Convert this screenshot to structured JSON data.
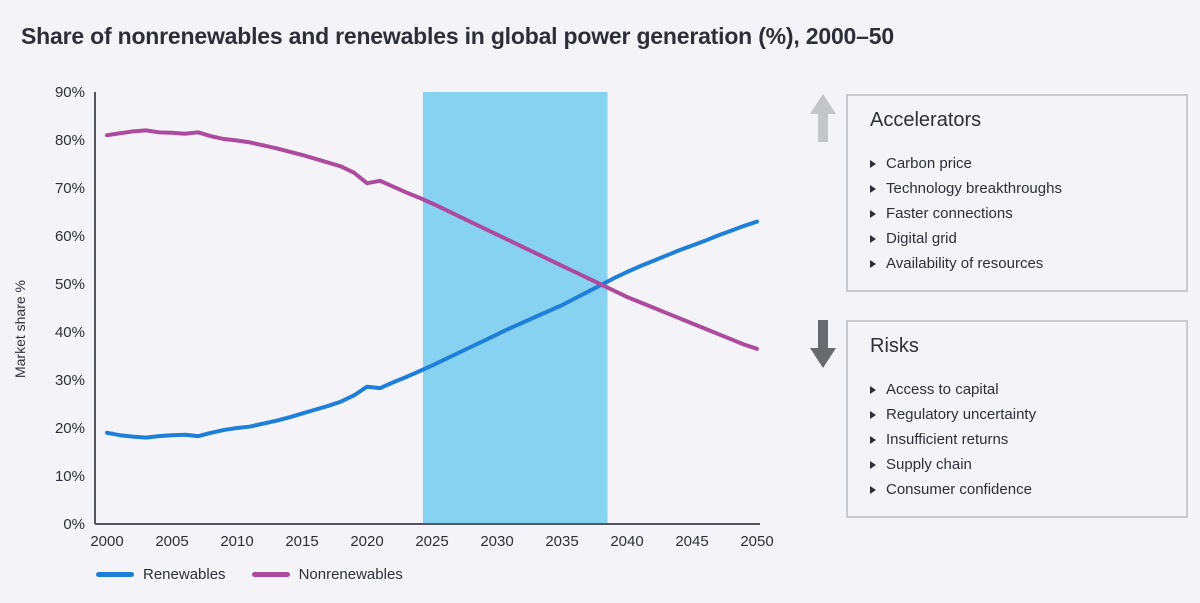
{
  "page": {
    "title": "Share of nonrenewables and renewables in global power generation (%), 2000–50",
    "background": "#f4f4f8"
  },
  "chart_data": {
    "type": "line",
    "title": "Share of nonrenewables and renewables in global power generation (%), 2000–50",
    "xlabel": "",
    "ylabel": "Market share %",
    "xlim": [
      2000,
      2050
    ],
    "ylim": [
      0,
      90
    ],
    "x_ticks": [
      2000,
      2005,
      2010,
      2015,
      2020,
      2025,
      2030,
      2035,
      2040,
      2045,
      2050
    ],
    "y_ticks": [
      0,
      10,
      20,
      30,
      40,
      50,
      60,
      70,
      80,
      90
    ],
    "y_tick_suffix": "%",
    "grid": false,
    "axis_color": "#54545c",
    "legend_position": "bottom-left",
    "highlight_band": {
      "from": 2024.3,
      "to": 2038.5,
      "color": "#87d2f1"
    },
    "x": [
      2000,
      2001,
      2002,
      2003,
      2004,
      2005,
      2006,
      2007,
      2008,
      2009,
      2010,
      2011,
      2012,
      2013,
      2014,
      2015,
      2016,
      2017,
      2018,
      2019,
      2020,
      2021,
      2022,
      2023,
      2024,
      2025,
      2026,
      2027,
      2028,
      2029,
      2030,
      2031,
      2032,
      2033,
      2034,
      2035,
      2036,
      2037,
      2038,
      2039,
      2040,
      2041,
      2042,
      2043,
      2044,
      2045,
      2046,
      2047,
      2048,
      2049,
      2050
    ],
    "series": [
      {
        "name": "Renewables",
        "color": "#1e7fd9",
        "values": [
          19.0,
          18.5,
          18.2,
          18.0,
          18.3,
          18.5,
          18.6,
          18.3,
          19.0,
          19.6,
          20.0,
          20.3,
          20.9,
          21.5,
          22.2,
          23.0,
          23.8,
          24.6,
          25.5,
          26.8,
          28.6,
          28.3,
          29.5,
          30.6,
          31.8,
          33.0,
          34.3,
          35.6,
          36.9,
          38.2,
          39.5,
          40.8,
          42.0,
          43.2,
          44.4,
          45.6,
          47.0,
          48.4,
          49.8,
          51.2,
          52.5,
          53.7,
          54.8,
          55.9,
          57.0,
          58.0,
          59.0,
          60.1,
          61.1,
          62.1,
          63.0
        ]
      },
      {
        "name": "Nonrenewables",
        "color": "#ae4a9e",
        "values": [
          81.0,
          81.4,
          81.8,
          82.0,
          81.6,
          81.5,
          81.3,
          81.6,
          80.8,
          80.2,
          79.9,
          79.5,
          78.9,
          78.3,
          77.6,
          76.9,
          76.1,
          75.3,
          74.5,
          73.2,
          71.0,
          71.5,
          70.3,
          69.1,
          68.0,
          66.8,
          65.5,
          64.2,
          62.9,
          61.6,
          60.3,
          59.0,
          57.7,
          56.4,
          55.1,
          53.8,
          52.5,
          51.2,
          49.9,
          48.6,
          47.3,
          46.2,
          45.1,
          44.0,
          42.9,
          41.8,
          40.7,
          39.6,
          38.5,
          37.4,
          36.5
        ]
      }
    ]
  },
  "legend": {
    "items": [
      {
        "label": "Renewables",
        "color": "#1e7fd9"
      },
      {
        "label": "Nonrenewables",
        "color": "#ae4a9e"
      }
    ]
  },
  "panels": {
    "accelerators": {
      "title": "Accelerators",
      "arrow": "up-arrow-icon",
      "arrow_color": "#c4c5c9",
      "items": [
        "Carbon price",
        "Technology breakthroughs",
        "Faster connections",
        "Digital grid",
        "Availability of resources"
      ]
    },
    "risks": {
      "title": "Risks",
      "arrow": "down-arrow-icon",
      "arrow_color": "#696a70",
      "items": [
        "Access to capital",
        "Regulatory uncertainty",
        "Insufficient returns",
        "Supply chain",
        "Consumer confidence"
      ]
    }
  }
}
